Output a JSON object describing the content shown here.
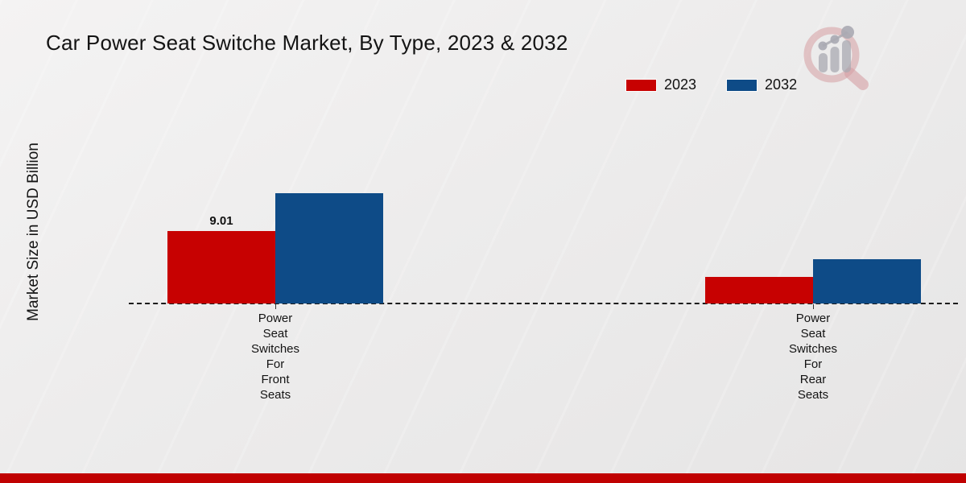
{
  "header": {
    "title": "Car Power Seat Switche Market, By Type, 2023 & 2032"
  },
  "axes": {
    "y_label": "Market Size in USD Billion"
  },
  "chart_data": {
    "type": "bar",
    "title": "Car Power Seat Switche Market, By Type, 2023 & 2032",
    "xlabel": "",
    "ylabel": "Market Size in USD Billion",
    "categories": [
      "Power Seat Switches For Front Seats",
      "Power Seat Switches For Rear Seats"
    ],
    "series": [
      {
        "name": "2023",
        "color": "#c70101",
        "values": [
          9.01,
          3.3
        ]
      },
      {
        "name": "2032",
        "color": "#0e4b87",
        "values": [
          13.7,
          5.5
        ]
      }
    ],
    "value_labels": [
      {
        "series_index": 0,
        "category_index": 0,
        "text": "9.01"
      }
    ],
    "ylim": [
      0,
      15
    ],
    "grid": false,
    "baseline_style": "dashed",
    "legend_position": "top-right"
  },
  "branding": {
    "watermark_icon": "market-research-future-logo",
    "accent_bar_color": "#c00101"
  }
}
